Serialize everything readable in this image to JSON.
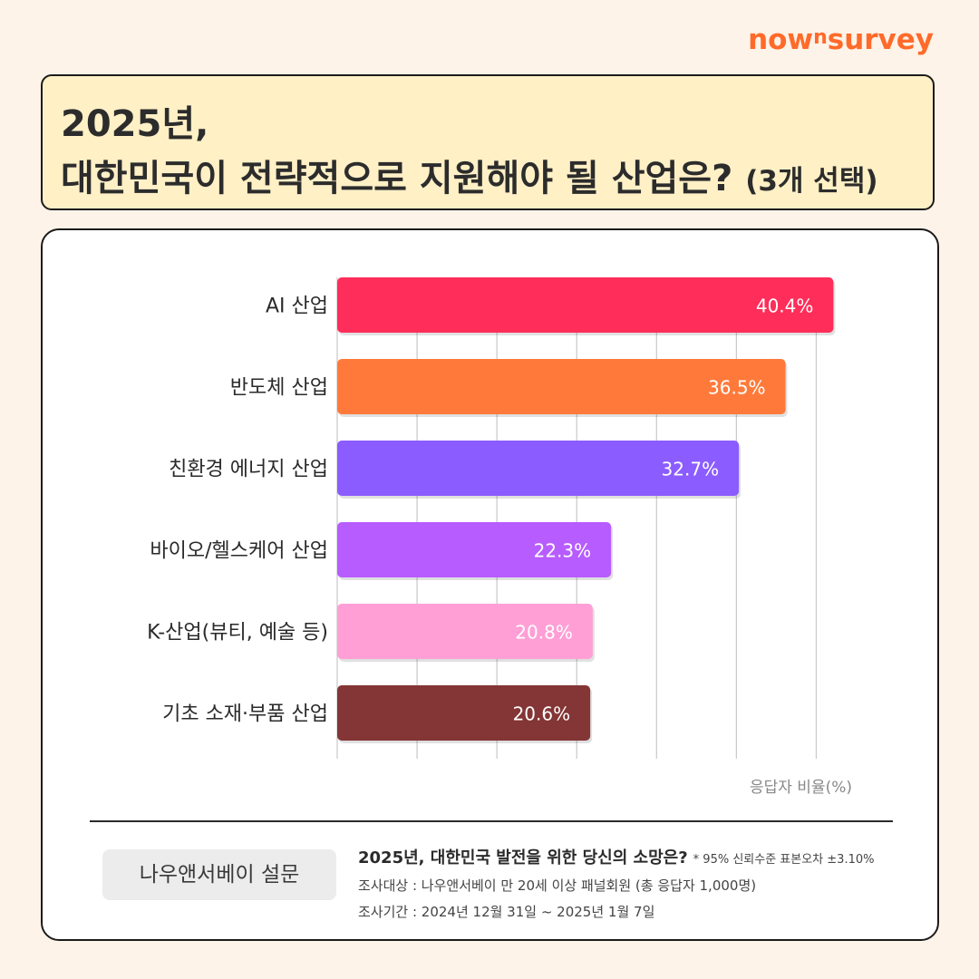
{
  "brand": {
    "logo_main": "now",
    "logo_sup": "n",
    "logo_end": "survey",
    "color": "#ff6a2a"
  },
  "header": {
    "title_line1": "2025년,",
    "title_line2": "대한민국이 전략적으로 지원해야 될 산업은?",
    "title_note": "(3개 선택)"
  },
  "chart_data": {
    "type": "bar",
    "orientation": "horizontal",
    "categories": [
      "AI 산업",
      "반도체 산업",
      "친환경 에너지 산업",
      "바이오/헬스케어 산업",
      "K-산업(뷰티, 예술 등)",
      "기초 소재·부품 산업"
    ],
    "values": [
      40.4,
      36.5,
      32.7,
      22.3,
      20.8,
      20.6
    ],
    "labels": [
      "40.4%",
      "36.5%",
      "32.7%",
      "22.3%",
      "20.8%",
      "20.6%"
    ],
    "colors": [
      "#ff2d5a",
      "#ff7a3a",
      "#8b5cff",
      "#b75cff",
      "#ff9fd6",
      "#843535"
    ],
    "xlabel": "응답자 비율(%)",
    "xlim": [
      0,
      60
    ],
    "grid": true
  },
  "footer": {
    "badge": "나우앤서베이 설문",
    "question": "2025년, 대한민국 발전을 위한 당신의 소망은?",
    "note": "* 95% 신뢰수준 표본오차 ±3.10%",
    "target": "조사대상 : 나우앤서베이 만 20세 이상 패널회원 (총 응답자 1,000명)",
    "period": "조사기간 : 2024년 12월 31일 ~ 2025년 1월 7일"
  }
}
